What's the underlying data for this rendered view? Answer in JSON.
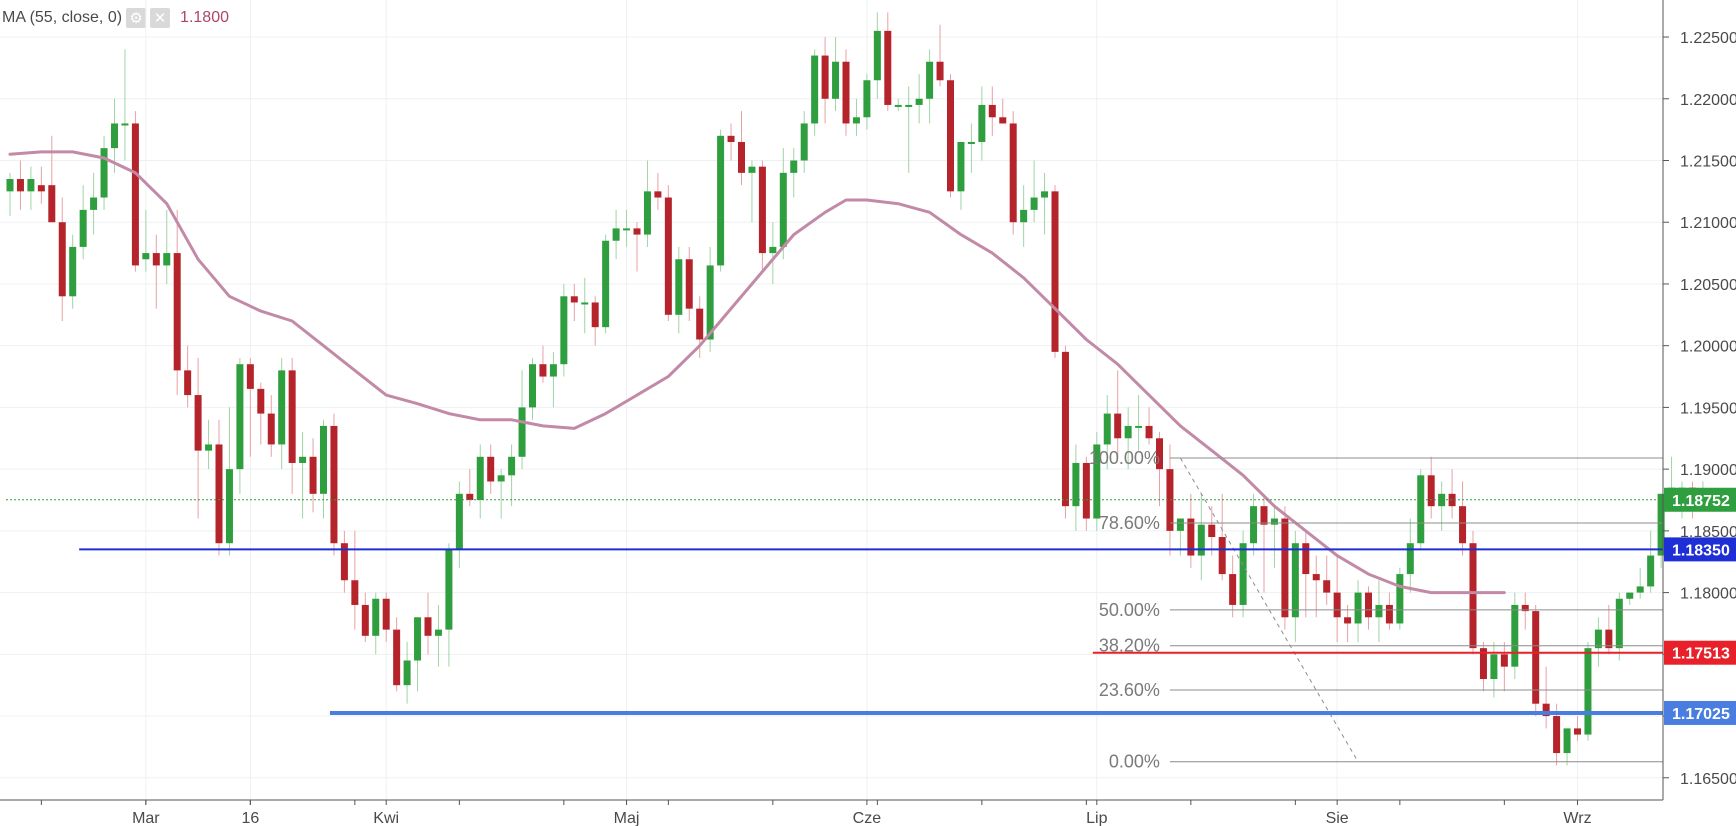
{
  "indicator": {
    "label": "MA (55, close, 0)",
    "value": "1.1800"
  },
  "colors": {
    "up": "#2e9e3e",
    "down": "#b5232b",
    "ma": "#c28aa6",
    "grid": "#eef0f3"
  },
  "chart_data": {
    "type": "candlestick",
    "ylim": [
      1.1632,
      1.228
    ],
    "y_ticks": [
      "1.22500",
      "1.22000",
      "1.21500",
      "1.21000",
      "1.20500",
      "1.20000",
      "1.19500",
      "1.19000",
      "1.18500",
      "1.18000",
      "1.17500",
      "1.17000",
      "1.16500"
    ],
    "x_labels": [
      {
        "label": "Mar",
        "index": 13
      },
      {
        "label": "16",
        "index": 23
      },
      {
        "label": "Kwi",
        "index": 36
      },
      {
        "label": "Maj",
        "index": 59
      },
      {
        "label": "Cze",
        "index": 82
      },
      {
        "label": "Lip",
        "index": 104
      },
      {
        "label": "Sie",
        "index": 127
      },
      {
        "label": "Wrz",
        "index": 150
      }
    ],
    "candles": [
      [
        1.2125,
        1.214,
        1.2105,
        1.2135
      ],
      [
        1.2135,
        1.215,
        1.211,
        1.2125
      ],
      [
        1.2125,
        1.2145,
        1.211,
        1.2135
      ],
      [
        1.213,
        1.2145,
        1.2115,
        1.2125
      ],
      [
        1.213,
        1.217,
        1.21,
        1.21
      ],
      [
        1.21,
        1.212,
        1.202,
        1.204
      ],
      [
        1.204,
        1.209,
        1.203,
        1.208
      ],
      [
        1.208,
        1.213,
        1.207,
        1.211
      ],
      [
        1.211,
        1.214,
        1.209,
        1.212
      ],
      [
        1.212,
        1.217,
        1.211,
        1.216
      ],
      [
        1.216,
        1.22,
        1.214,
        1.218
      ],
      [
        1.218,
        1.224,
        1.215,
        1.218
      ],
      [
        1.218,
        1.219,
        1.206,
        1.2065
      ],
      [
        1.207,
        1.211,
        1.206,
        1.2075
      ],
      [
        1.2075,
        1.209,
        1.203,
        1.2065
      ],
      [
        1.2065,
        1.211,
        1.205,
        1.2075
      ],
      [
        1.2075,
        1.211,
        1.196,
        1.198
      ],
      [
        1.198,
        1.2,
        1.195,
        1.196
      ],
      [
        1.196,
        1.199,
        1.186,
        1.1915
      ],
      [
        1.1915,
        1.194,
        1.19,
        1.192
      ],
      [
        1.192,
        1.194,
        1.183,
        1.184
      ],
      [
        1.184,
        1.195,
        1.183,
        1.19
      ],
      [
        1.19,
        1.199,
        1.188,
        1.1985
      ],
      [
        1.1985,
        1.199,
        1.191,
        1.1965
      ],
      [
        1.1965,
        1.197,
        1.192,
        1.1945
      ],
      [
        1.1945,
        1.196,
        1.191,
        1.192
      ],
      [
        1.192,
        1.199,
        1.19,
        1.198
      ],
      [
        1.198,
        1.199,
        1.188,
        1.1905
      ],
      [
        1.1905,
        1.193,
        1.186,
        1.191
      ],
      [
        1.191,
        1.1925,
        1.1865,
        1.188
      ],
      [
        1.188,
        1.194,
        1.186,
        1.1935
      ],
      [
        1.1935,
        1.1945,
        1.183,
        1.184
      ],
      [
        1.184,
        1.185,
        1.18,
        1.181
      ],
      [
        1.181,
        1.185,
        1.177,
        1.179
      ],
      [
        1.179,
        1.18,
        1.176,
        1.1765
      ],
      [
        1.1765,
        1.18,
        1.175,
        1.1795
      ],
      [
        1.1795,
        1.18,
        1.176,
        1.177
      ],
      [
        1.177,
        1.178,
        1.172,
        1.1725
      ],
      [
        1.1725,
        1.176,
        1.171,
        1.1745
      ],
      [
        1.1745,
        1.178,
        1.172,
        1.178
      ],
      [
        1.178,
        1.18,
        1.175,
        1.1765
      ],
      [
        1.1765,
        1.179,
        1.174,
        1.177
      ],
      [
        1.177,
        1.184,
        1.174,
        1.1835
      ],
      [
        1.1835,
        1.189,
        1.182,
        1.188
      ],
      [
        1.188,
        1.19,
        1.187,
        1.1875
      ],
      [
        1.1875,
        1.192,
        1.186,
        1.191
      ],
      [
        1.191,
        1.192,
        1.188,
        1.189
      ],
      [
        1.189,
        1.19,
        1.186,
        1.1895
      ],
      [
        1.1895,
        1.192,
        1.187,
        1.191
      ],
      [
        1.191,
        1.198,
        1.19,
        1.195
      ],
      [
        1.195,
        1.199,
        1.194,
        1.1985
      ],
      [
        1.1985,
        1.2,
        1.197,
        1.1975
      ],
      [
        1.1975,
        1.1995,
        1.195,
        1.1985
      ],
      [
        1.1985,
        1.205,
        1.1975,
        1.204
      ],
      [
        1.204,
        1.205,
        1.202,
        1.2035
      ],
      [
        1.2035,
        1.2055,
        1.201,
        1.2035
      ],
      [
        1.2035,
        1.204,
        1.2,
        1.2015
      ],
      [
        1.2015,
        1.209,
        1.201,
        1.2085
      ],
      [
        1.2085,
        1.211,
        1.207,
        1.2095
      ],
      [
        1.2095,
        1.211,
        1.208,
        1.2095
      ],
      [
        1.2095,
        1.21,
        1.206,
        1.209
      ],
      [
        1.209,
        1.215,
        1.208,
        1.2125
      ],
      [
        1.2125,
        1.214,
        1.211,
        1.212
      ],
      [
        1.212,
        1.213,
        1.202,
        1.2025
      ],
      [
        1.2025,
        1.208,
        1.201,
        1.207
      ],
      [
        1.207,
        1.208,
        1.202,
        1.203
      ],
      [
        1.203,
        1.204,
        1.199,
        1.2005
      ],
      [
        1.2005,
        1.208,
        1.1995,
        1.2065
      ],
      [
        1.2065,
        1.2175,
        1.206,
        1.217
      ],
      [
        1.217,
        1.218,
        1.215,
        1.2165
      ],
      [
        1.2165,
        1.219,
        1.213,
        1.214
      ],
      [
        1.214,
        1.215,
        1.21,
        1.2145
      ],
      [
        1.2145,
        1.215,
        1.206,
        1.2075
      ],
      [
        1.2075,
        1.21,
        1.205,
        1.208
      ],
      [
        1.208,
        1.216,
        1.207,
        1.214
      ],
      [
        1.214,
        1.216,
        1.212,
        1.215
      ],
      [
        1.215,
        1.219,
        1.214,
        1.218
      ],
      [
        1.218,
        1.224,
        1.217,
        1.2235
      ],
      [
        1.2235,
        1.225,
        1.218,
        1.22
      ],
      [
        1.22,
        1.225,
        1.219,
        1.223
      ],
      [
        1.223,
        1.224,
        1.217,
        1.218
      ],
      [
        1.218,
        1.22,
        1.217,
        1.2185
      ],
      [
        1.2185,
        1.222,
        1.2175,
        1.2215
      ],
      [
        1.2215,
        1.227,
        1.22,
        1.2255
      ],
      [
        1.2255,
        1.227,
        1.219,
        1.2195
      ],
      [
        1.2195,
        1.22,
        1.219,
        1.2195
      ],
      [
        1.2195,
        1.221,
        1.214,
        1.2195
      ],
      [
        1.2195,
        1.222,
        1.218,
        1.22
      ],
      [
        1.22,
        1.224,
        1.218,
        1.223
      ],
      [
        1.223,
        1.226,
        1.221,
        1.2215
      ],
      [
        1.2215,
        1.222,
        1.212,
        1.2125
      ],
      [
        1.2125,
        1.216,
        1.211,
        1.2165
      ],
      [
        1.2165,
        1.218,
        1.214,
        1.2165
      ],
      [
        1.2165,
        1.221,
        1.215,
        1.2195
      ],
      [
        1.2195,
        1.221,
        1.217,
        1.2185
      ],
      [
        1.2185,
        1.22,
        1.218,
        1.218
      ],
      [
        1.218,
        1.219,
        1.209,
        1.21
      ],
      [
        1.21,
        1.213,
        1.208,
        1.211
      ],
      [
        1.211,
        1.215,
        1.21,
        1.212
      ],
      [
        1.212,
        1.214,
        1.209,
        1.2125
      ],
      [
        1.2125,
        1.213,
        1.199,
        1.1995
      ],
      [
        1.1995,
        1.2,
        1.186,
        1.187
      ],
      [
        1.187,
        1.192,
        1.185,
        1.1905
      ],
      [
        1.1905,
        1.191,
        1.185,
        1.186
      ],
      [
        1.186,
        1.193,
        1.185,
        1.192
      ],
      [
        1.192,
        1.196,
        1.19,
        1.1945
      ],
      [
        1.1945,
        1.198,
        1.191,
        1.1925
      ],
      [
        1.1925,
        1.195,
        1.19,
        1.1935
      ],
      [
        1.1935,
        1.196,
        1.1915,
        1.1935
      ],
      [
        1.1935,
        1.195,
        1.192,
        1.1925
      ],
      [
        1.1925,
        1.193,
        1.187,
        1.19
      ],
      [
        1.19,
        1.192,
        1.183,
        1.185
      ],
      [
        1.185,
        1.186,
        1.183,
        1.186
      ],
      [
        1.186,
        1.188,
        1.182,
        1.183
      ],
      [
        1.183,
        1.188,
        1.181,
        1.1855
      ],
      [
        1.1855,
        1.187,
        1.183,
        1.1845
      ],
      [
        1.1845,
        1.188,
        1.181,
        1.1815
      ],
      [
        1.1815,
        1.183,
        1.178,
        1.179
      ],
      [
        1.179,
        1.185,
        1.178,
        1.184
      ],
      [
        1.184,
        1.188,
        1.183,
        1.187
      ],
      [
        1.187,
        1.188,
        1.18,
        1.1855
      ],
      [
        1.1855,
        1.187,
        1.182,
        1.186
      ],
      [
        1.186,
        1.187,
        1.177,
        1.178
      ],
      [
        1.178,
        1.185,
        1.176,
        1.184
      ],
      [
        1.184,
        1.185,
        1.178,
        1.1815
      ],
      [
        1.1815,
        1.183,
        1.178,
        1.181
      ],
      [
        1.181,
        1.183,
        1.179,
        1.18
      ],
      [
        1.18,
        1.183,
        1.176,
        1.178
      ],
      [
        1.178,
        1.179,
        1.176,
        1.1775
      ],
      [
        1.1775,
        1.181,
        1.176,
        1.18
      ],
      [
        1.18,
        1.1805,
        1.177,
        1.178
      ],
      [
        1.178,
        1.181,
        1.176,
        1.179
      ],
      [
        1.179,
        1.18,
        1.177,
        1.1775
      ],
      [
        1.1775,
        1.182,
        1.177,
        1.1815
      ],
      [
        1.1815,
        1.186,
        1.18,
        1.184
      ],
      [
        1.184,
        1.19,
        1.1835,
        1.1895
      ],
      [
        1.1895,
        1.191,
        1.186,
        1.187
      ],
      [
        1.187,
        1.189,
        1.185,
        1.188
      ],
      [
        1.188,
        1.19,
        1.186,
        1.187
      ],
      [
        1.187,
        1.189,
        1.183,
        1.184
      ],
      [
        1.184,
        1.185,
        1.175,
        1.1755
      ],
      [
        1.1755,
        1.176,
        1.172,
        1.173
      ],
      [
        1.173,
        1.176,
        1.1715,
        1.175
      ],
      [
        1.175,
        1.176,
        1.172,
        1.174
      ],
      [
        1.174,
        1.18,
        1.173,
        1.179
      ],
      [
        1.179,
        1.18,
        1.177,
        1.1785
      ],
      [
        1.1785,
        1.179,
        1.17,
        1.171
      ],
      [
        1.171,
        1.174,
        1.169,
        1.17
      ],
      [
        1.17,
        1.171,
        1.166,
        1.167
      ],
      [
        1.167,
        1.169,
        1.166,
        1.169
      ],
      [
        1.169,
        1.17,
        1.168,
        1.1685
      ],
      [
        1.1685,
        1.176,
        1.168,
        1.1755
      ],
      [
        1.1755,
        1.178,
        1.174,
        1.177
      ],
      [
        1.177,
        1.179,
        1.175,
        1.1755
      ],
      [
        1.1755,
        1.18,
        1.1745,
        1.1795
      ],
      [
        1.1795,
        1.18,
        1.179,
        1.18
      ],
      [
        1.18,
        1.182,
        1.1795,
        1.1805
      ],
      [
        1.1805,
        1.185,
        1.18,
        1.183
      ],
      [
        1.183,
        1.188,
        1.182,
        1.188
      ],
      [
        1.188,
        1.191,
        1.187,
        1.1885
      ],
      [
        1.1885,
        1.189,
        1.186,
        1.1885
      ],
      [
        1.1885,
        1.189,
        1.186,
        1.1875
      ],
      [
        1.1875,
        1.189,
        1.187,
        1.188
      ]
    ],
    "ma_line": [
      [
        0,
        1.2155
      ],
      [
        3,
        1.2157
      ],
      [
        6,
        1.2157
      ],
      [
        9,
        1.2152
      ],
      [
        12,
        1.214
      ],
      [
        15,
        1.2115
      ],
      [
        18,
        1.207
      ],
      [
        21,
        1.204
      ],
      [
        24,
        1.2028
      ],
      [
        27,
        1.202
      ],
      [
        30,
        1.2
      ],
      [
        33,
        1.198
      ],
      [
        36,
        1.196
      ],
      [
        39,
        1.1953
      ],
      [
        42,
        1.1945
      ],
      [
        45,
        1.194
      ],
      [
        48,
        1.194
      ],
      [
        51,
        1.1935
      ],
      [
        54,
        1.1933
      ],
      [
        57,
        1.1945
      ],
      [
        60,
        1.196
      ],
      [
        63,
        1.1975
      ],
      [
        66,
        1.2
      ],
      [
        69,
        1.203
      ],
      [
        72,
        1.206
      ],
      [
        75,
        1.209
      ],
      [
        78,
        1.2108
      ],
      [
        80,
        1.2118
      ],
      [
        82,
        1.2118
      ],
      [
        85,
        1.2115
      ],
      [
        88,
        1.2108
      ],
      [
        91,
        1.209
      ],
      [
        94,
        1.2075
      ],
      [
        97,
        1.2055
      ],
      [
        100,
        1.203
      ],
      [
        103,
        1.2005
      ],
      [
        106,
        1.1985
      ],
      [
        109,
        1.196
      ],
      [
        112,
        1.1935
      ],
      [
        115,
        1.1915
      ],
      [
        118,
        1.1895
      ],
      [
        121,
        1.187
      ],
      [
        124,
        1.185
      ],
      [
        127,
        1.183
      ],
      [
        130,
        1.1815
      ],
      [
        133,
        1.1805
      ],
      [
        136,
        1.18
      ],
      [
        139,
        1.18
      ],
      [
        142,
        1.18
      ],
      [
        143,
        1.18
      ]
    ],
    "horizontal_levels": [
      {
        "value": 1.18752,
        "label": "1.18752",
        "color": "#2e9e3e",
        "style": "dotted",
        "from_index": 0
      },
      {
        "value": 1.1835,
        "label": "1.18350",
        "color": "#1f2fd6",
        "style": "solid",
        "from_index": 7
      },
      {
        "value": 1.17513,
        "label": "1.17513",
        "color": "#e8202a",
        "style": "solid",
        "from_index": 104
      },
      {
        "value": 1.17025,
        "label": "1.17025",
        "color": "#4a7de0",
        "style": "thick",
        "from_index": 31
      }
    ],
    "fibonacci": {
      "high": 1.1909,
      "low": 1.1663,
      "from_index": 111,
      "to_index": 143,
      "trend_from_index": 112,
      "trend_to_index": 129,
      "levels": [
        {
          "label": "100.00%",
          "ratio": 1.0
        },
        {
          "label": "78.60%",
          "ratio": 0.786
        },
        {
          "label": "50.00%",
          "ratio": 0.5
        },
        {
          "label": "38.20%",
          "ratio": 0.382
        },
        {
          "label": "23.60%",
          "ratio": 0.236
        },
        {
          "label": "0.00%",
          "ratio": 0.0
        }
      ]
    }
  }
}
